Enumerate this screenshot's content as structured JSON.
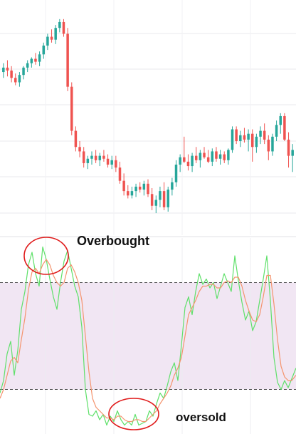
{
  "chart_data": [
    {
      "type": "candlestick",
      "grid": true,
      "colors": {
        "up": "#26a69a",
        "down": "#ef5350",
        "grid": "#e9e9ec"
      },
      "candles": [
        {
          "o": 6.6,
          "h": 7.2,
          "l": 6.2,
          "c": 6.9
        },
        {
          "o": 6.9,
          "h": 7.4,
          "l": 6.3,
          "c": 6.7
        },
        {
          "o": 6.7,
          "h": 7.0,
          "l": 5.9,
          "c": 6.2
        },
        {
          "o": 6.2,
          "h": 6.5,
          "l": 5.7,
          "c": 5.9
        },
        {
          "o": 5.9,
          "h": 6.6,
          "l": 5.6,
          "c": 6.4
        },
        {
          "o": 6.4,
          "h": 7.0,
          "l": 6.1,
          "c": 6.9
        },
        {
          "o": 6.9,
          "h": 7.4,
          "l": 6.6,
          "c": 7.2
        },
        {
          "o": 7.2,
          "h": 7.6,
          "l": 6.9,
          "c": 7.5
        },
        {
          "o": 7.5,
          "h": 7.9,
          "l": 7.1,
          "c": 7.3
        },
        {
          "o": 7.3,
          "h": 8.0,
          "l": 7.0,
          "c": 7.8
        },
        {
          "o": 7.8,
          "h": 8.6,
          "l": 7.5,
          "c": 8.4
        },
        {
          "o": 8.4,
          "h": 9.2,
          "l": 8.1,
          "c": 9.0
        },
        {
          "o": 9.0,
          "h": 9.5,
          "l": 8.6,
          "c": 8.8
        },
        {
          "o": 8.8,
          "h": 9.8,
          "l": 8.5,
          "c": 9.6
        },
        {
          "o": 9.6,
          "h": 10.2,
          "l": 9.3,
          "c": 10.0
        },
        {
          "o": 10.0,
          "h": 10.2,
          "l": 9.0,
          "c": 9.2
        },
        {
          "o": 9.2,
          "h": 9.6,
          "l": 5.3,
          "c": 5.6
        },
        {
          "o": 5.6,
          "h": 5.9,
          "l": 2.3,
          "c": 2.6
        },
        {
          "o": 2.6,
          "h": 2.9,
          "l": 1.2,
          "c": 1.5
        },
        {
          "o": 1.5,
          "h": 1.9,
          "l": 0.8,
          "c": 1.2
        },
        {
          "o": 1.2,
          "h": 1.5,
          "l": 0.1,
          "c": 0.4
        },
        {
          "o": 0.4,
          "h": 0.9,
          "l": 0.0,
          "c": 0.7
        },
        {
          "o": 0.7,
          "h": 1.2,
          "l": 0.3,
          "c": 0.9
        },
        {
          "o": 0.9,
          "h": 1.3,
          "l": 0.4,
          "c": 0.6
        },
        {
          "o": 0.6,
          "h": 1.1,
          "l": 0.2,
          "c": 0.9
        },
        {
          "o": 0.9,
          "h": 1.3,
          "l": 0.5,
          "c": 0.7
        },
        {
          "o": 0.7,
          "h": 1.0,
          "l": 0.1,
          "c": 0.3
        },
        {
          "o": 0.3,
          "h": 0.9,
          "l": 0.0,
          "c": 0.6
        },
        {
          "o": 0.6,
          "h": 0.9,
          "l": -0.2,
          "c": 0.1
        },
        {
          "o": 0.1,
          "h": 0.5,
          "l": -1.0,
          "c": -0.8
        },
        {
          "o": -0.8,
          "h": -0.3,
          "l": -1.8,
          "c": -1.5
        },
        {
          "o": -1.5,
          "h": -1.1,
          "l": -2.0,
          "c": -1.8
        },
        {
          "o": -1.8,
          "h": -1.2,
          "l": -2.0,
          "c": -1.5
        },
        {
          "o": -1.5,
          "h": -1.0,
          "l": -1.9,
          "c": -1.2
        },
        {
          "o": -1.2,
          "h": -0.9,
          "l": -1.6,
          "c": -1.4
        },
        {
          "o": -1.4,
          "h": -0.8,
          "l": -1.8,
          "c": -1.0
        },
        {
          "o": -1.0,
          "h": -0.7,
          "l": -1.9,
          "c": -1.7
        },
        {
          "o": -1.7,
          "h": -1.3,
          "l": -2.8,
          "c": -2.5
        },
        {
          "o": -2.5,
          "h": -1.8,
          "l": -3.0,
          "c": -2.1
        },
        {
          "o": -2.1,
          "h": -1.2,
          "l": -2.6,
          "c": -1.5
        },
        {
          "o": -1.5,
          "h": -0.9,
          "l": -2.8,
          "c": -2.6
        },
        {
          "o": -2.6,
          "h": -1.2,
          "l": -2.9,
          "c": -1.4
        },
        {
          "o": -1.4,
          "h": -0.6,
          "l": -1.8,
          "c": -0.9
        },
        {
          "o": -0.9,
          "h": 0.6,
          "l": -1.2,
          "c": 0.3
        },
        {
          "o": 0.3,
          "h": 1.0,
          "l": -0.2,
          "c": 0.8
        },
        {
          "o": 0.8,
          "h": 2.2,
          "l": 0.4,
          "c": 0.5
        },
        {
          "o": 0.5,
          "h": 1.0,
          "l": -0.1,
          "c": 0.2
        },
        {
          "o": 0.2,
          "h": 1.1,
          "l": -0.2,
          "c": 0.9
        },
        {
          "o": 0.9,
          "h": 1.5,
          "l": 0.4,
          "c": 0.6
        },
        {
          "o": 0.6,
          "h": 1.3,
          "l": 0.1,
          "c": 1.1
        },
        {
          "o": 1.1,
          "h": 1.5,
          "l": 0.7,
          "c": 0.8
        },
        {
          "o": 0.8,
          "h": 1.3,
          "l": 0.4,
          "c": 0.5
        },
        {
          "o": 0.5,
          "h": 1.4,
          "l": 0.2,
          "c": 1.2
        },
        {
          "o": 1.2,
          "h": 1.5,
          "l": 0.5,
          "c": 0.7
        },
        {
          "o": 0.7,
          "h": 1.3,
          "l": 0.3,
          "c": 1.0
        },
        {
          "o": 1.0,
          "h": 1.2,
          "l": 0.4,
          "c": 0.6
        },
        {
          "o": 0.6,
          "h": 1.4,
          "l": 0.3,
          "c": 1.3
        },
        {
          "o": 1.3,
          "h": 2.9,
          "l": 1.1,
          "c": 2.7
        },
        {
          "o": 2.7,
          "h": 2.9,
          "l": 1.7,
          "c": 1.9
        },
        {
          "o": 1.9,
          "h": 2.6,
          "l": 1.5,
          "c": 2.3
        },
        {
          "o": 2.3,
          "h": 2.8,
          "l": 1.8,
          "c": 2.0
        },
        {
          "o": 2.0,
          "h": 2.7,
          "l": 1.2,
          "c": 2.4
        },
        {
          "o": 2.4,
          "h": 2.7,
          "l": 0.5,
          "c": 1.5
        },
        {
          "o": 1.5,
          "h": 2.4,
          "l": 1.1,
          "c": 2.2
        },
        {
          "o": 2.2,
          "h": 2.9,
          "l": 1.7,
          "c": 2.6
        },
        {
          "o": 2.6,
          "h": 3.1,
          "l": 1.7,
          "c": 2.0
        },
        {
          "o": 2.0,
          "h": 2.3,
          "l": 0.6,
          "c": 1.2
        },
        {
          "o": 1.2,
          "h": 2.4,
          "l": 0.9,
          "c": 2.2
        },
        {
          "o": 2.2,
          "h": 3.3,
          "l": 1.9,
          "c": 3.0
        },
        {
          "o": 3.0,
          "h": 3.8,
          "l": 2.4,
          "c": 3.6
        },
        {
          "o": 3.6,
          "h": 3.8,
          "l": 1.9,
          "c": 2.0
        },
        {
          "o": 2.0,
          "h": 2.5,
          "l": 0.1,
          "c": 0.9
        },
        {
          "o": 0.9,
          "h": 1.7,
          "l": -0.2,
          "c": 1.3
        }
      ],
      "ylim": [
        -4.5,
        11.5
      ]
    },
    {
      "type": "line",
      "grid": true,
      "ylim": [
        -5,
        105
      ],
      "bands": {
        "upper": 80,
        "lower": 20,
        "fill": "#f1e6f3",
        "line": "#555555"
      },
      "series": [
        {
          "color": "#5fe06a",
          "x": [
            0,
            5,
            10,
            15,
            20,
            25,
            30,
            35,
            40,
            45,
            50,
            55,
            60,
            65,
            70,
            75,
            80,
            85,
            90,
            95,
            100,
            105,
            110,
            115,
            120,
            125,
            130,
            135,
            140,
            145,
            150,
            155,
            160,
            165,
            170,
            175,
            180,
            185,
            190,
            195,
            200,
            205,
            210,
            215,
            220,
            225,
            230,
            235,
            240,
            245,
            250,
            255,
            260,
            265,
            270,
            275,
            280,
            285,
            290,
            295,
            300,
            305,
            310,
            315,
            320,
            325,
            330,
            335,
            340,
            345,
            350,
            355,
            360,
            365,
            370,
            375,
            380,
            385,
            390,
            395,
            400,
            405,
            410,
            416
          ],
          "values": [
            18,
            25,
            40,
            47,
            28,
            42,
            65,
            75,
            90,
            97,
            85,
            78,
            100,
            93,
            82,
            72,
            65,
            80,
            92,
            98,
            88,
            78,
            72,
            55,
            20,
            6,
            5,
            8,
            3,
            6,
            0,
            5,
            2,
            8,
            3,
            0,
            2,
            0,
            6,
            0,
            1,
            2,
            8,
            5,
            12,
            18,
            15,
            22,
            30,
            35,
            25,
            45,
            66,
            72,
            62,
            75,
            85,
            79,
            82,
            77,
            80,
            71,
            78,
            85,
            80,
            75,
            95,
            81,
            69,
            59,
            64,
            53,
            58,
            70,
            82,
            95,
            70,
            38,
            24,
            20,
            25,
            21,
            26,
            32
          ]
        },
        {
          "color": "#f4946e",
          "x": [
            0,
            5,
            10,
            15,
            20,
            25,
            30,
            35,
            40,
            45,
            50,
            55,
            60,
            65,
            70,
            75,
            80,
            85,
            90,
            95,
            100,
            105,
            110,
            115,
            120,
            125,
            130,
            135,
            140,
            145,
            150,
            155,
            160,
            165,
            170,
            175,
            180,
            185,
            190,
            195,
            200,
            205,
            210,
            215,
            220,
            225,
            230,
            235,
            240,
            245,
            250,
            255,
            260,
            265,
            270,
            275,
            280,
            285,
            290,
            295,
            300,
            305,
            310,
            315,
            320,
            325,
            330,
            335,
            340,
            345,
            350,
            355,
            360,
            365,
            370,
            375,
            380,
            385,
            390,
            395,
            400,
            405,
            410,
            416
          ],
          "values": [
            15,
            20,
            28,
            36,
            38,
            35,
            48,
            60,
            76,
            86,
            88,
            85,
            90,
            93,
            90,
            84,
            80,
            78,
            80,
            88,
            90,
            86,
            80,
            70,
            50,
            30,
            15,
            10,
            8,
            6,
            4,
            4,
            3,
            5,
            5,
            3,
            2,
            2,
            3,
            3,
            2,
            2,
            4,
            6,
            8,
            12,
            15,
            18,
            22,
            28,
            32,
            38,
            50,
            62,
            66,
            70,
            75,
            78,
            78,
            79,
            79,
            77,
            77,
            80,
            81,
            80,
            83,
            83,
            78,
            70,
            64,
            59,
            58,
            62,
            72,
            84,
            84,
            68,
            48,
            33,
            27,
            25,
            25,
            28
          ]
        }
      ],
      "annotations": [
        {
          "text": "Overbought",
          "x": 65,
          "y": 95
        },
        {
          "text": "oversold",
          "x": 175,
          "y": 2
        }
      ]
    }
  ]
}
